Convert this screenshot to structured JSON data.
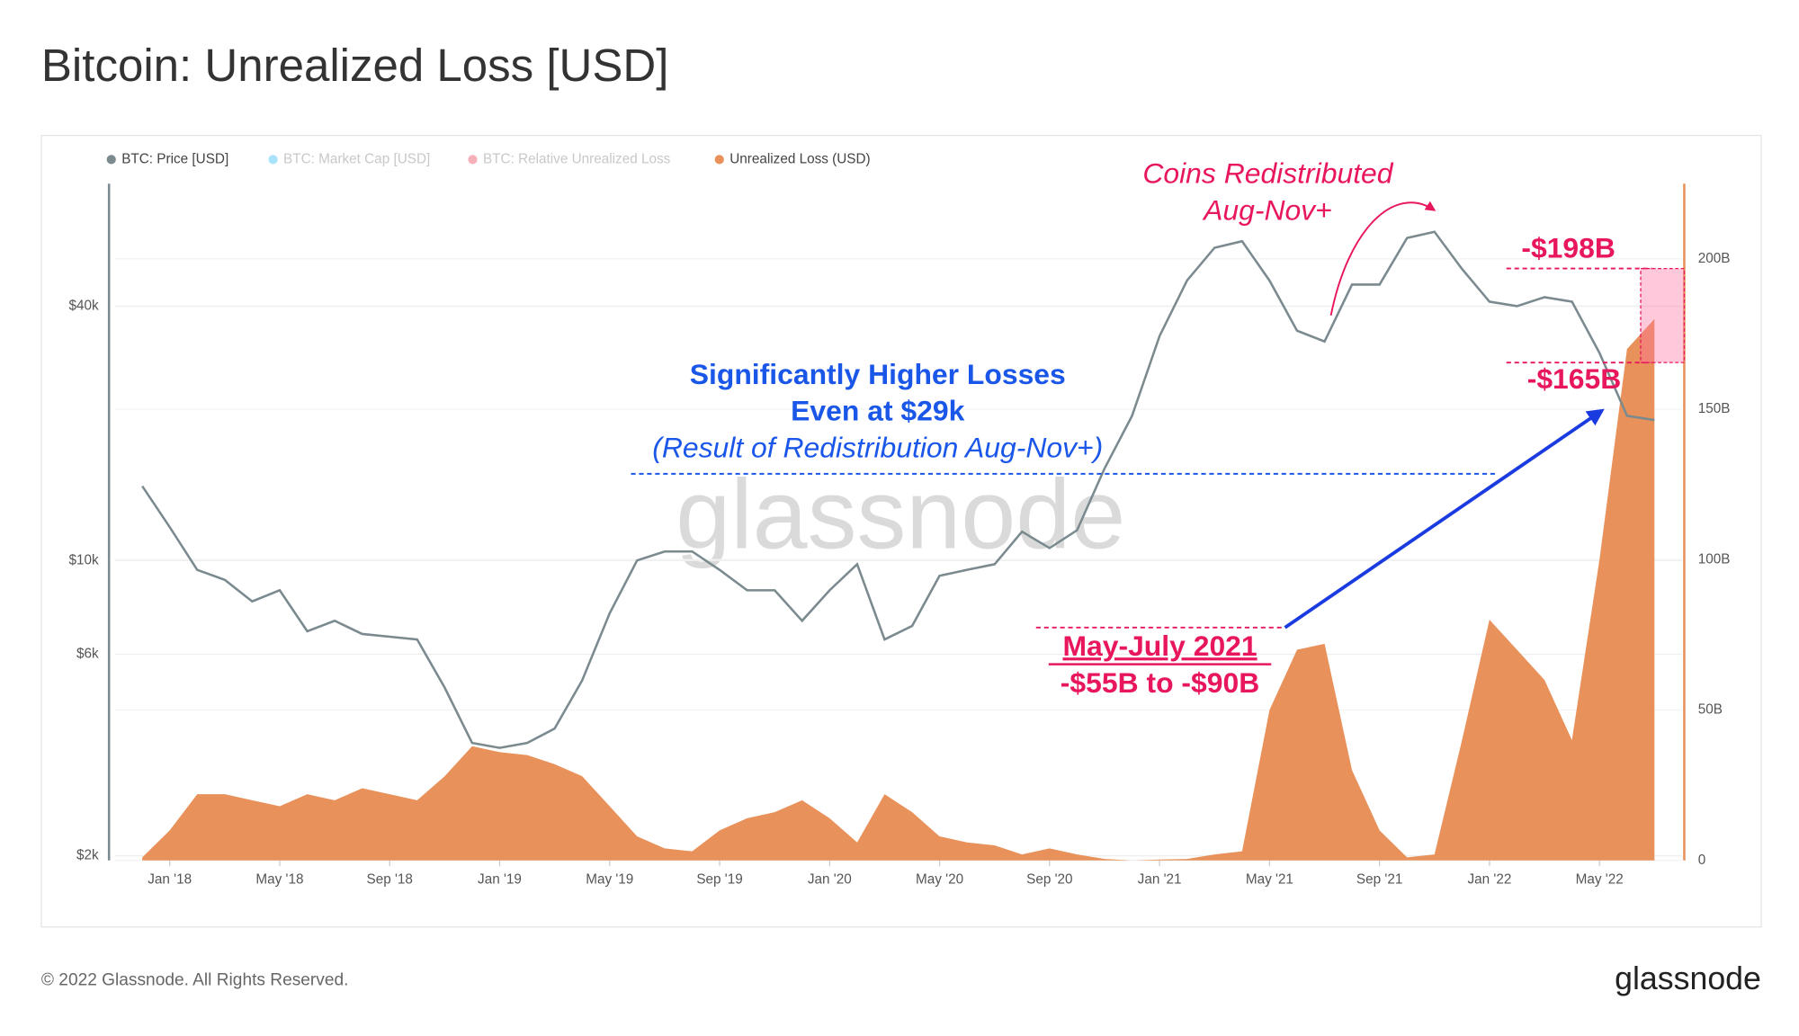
{
  "title": "Bitcoin: Unrealized Loss [USD]",
  "footer": "© 2022 Glassnode. All Rights Reserved.",
  "logo": "glassnode",
  "watermark": "glassnode",
  "chart_data": {
    "type": "line",
    "x": [
      "2017-12",
      "2018-01",
      "2018-02",
      "2018-03",
      "2018-04",
      "2018-05",
      "2018-06",
      "2018-07",
      "2018-08",
      "2018-09",
      "2018-10",
      "2018-11",
      "2018-12",
      "2019-01",
      "2019-02",
      "2019-03",
      "2019-04",
      "2019-05",
      "2019-06",
      "2019-07",
      "2019-08",
      "2019-09",
      "2019-10",
      "2019-11",
      "2019-12",
      "2020-01",
      "2020-02",
      "2020-03",
      "2020-04",
      "2020-05",
      "2020-06",
      "2020-07",
      "2020-08",
      "2020-09",
      "2020-10",
      "2020-11",
      "2020-12",
      "2021-01",
      "2021-02",
      "2021-03",
      "2021-04",
      "2021-05",
      "2021-06",
      "2021-07",
      "2021-08",
      "2021-09",
      "2021-10",
      "2021-11",
      "2021-12",
      "2022-01",
      "2022-02",
      "2022-03",
      "2022-04",
      "2022-05",
      "2022-06",
      "2022-07"
    ],
    "series": [
      {
        "name": "BTC: Price [USD]",
        "color": "#7a8a8f",
        "axis": "y",
        "values": [
          15000,
          12000,
          9500,
          9000,
          8000,
          8500,
          6800,
          7200,
          6700,
          6600,
          6500,
          5000,
          3700,
          3600,
          3700,
          4000,
          5200,
          7500,
          10000,
          10500,
          10500,
          9500,
          8500,
          8500,
          7200,
          8500,
          9800,
          6500,
          7000,
          9200,
          9500,
          9800,
          11700,
          10700,
          11800,
          16500,
          22000,
          34000,
          46000,
          55000,
          57000,
          46000,
          35000,
          33000,
          45000,
          45000,
          58000,
          60000,
          49000,
          41000,
          40000,
          42000,
          41000,
          31000,
          22000,
          21500
        ]
      },
      {
        "name": "Unrealized Loss (USD)",
        "color": "#e8915a",
        "axis": "y2",
        "style": "area",
        "values": [
          1000000000,
          10000000000,
          22000000000,
          22000000000,
          20000000000,
          18000000000,
          22000000000,
          20000000000,
          24000000000,
          22000000000,
          20000000000,
          28000000000,
          38000000000,
          36000000000,
          35000000000,
          32000000000,
          28000000000,
          18000000000,
          8000000000,
          4000000000,
          3000000000,
          10000000000,
          14000000000,
          16000000000,
          20000000000,
          14000000000,
          6000000000,
          22000000000,
          16000000000,
          8000000000,
          6000000000,
          5000000000,
          2000000000,
          4000000000,
          2000000000,
          500000000,
          0,
          300000000,
          500000000,
          2000000000,
          3000000000,
          50000000000,
          70000000000,
          72000000000,
          30000000000,
          10000000000,
          1000000000,
          2000000000,
          40000000000,
          80000000000,
          70000000000,
          60000000000,
          40000000000,
          100000000000,
          170000000000,
          180000000000
        ]
      }
    ],
    "inactive_legend": [
      {
        "name": "BTC: Market Cap [USD]",
        "color": "#29b6f6"
      },
      {
        "name": "BTC: Relative Unrealized Loss",
        "color": "#e53950"
      }
    ],
    "legend_order": [
      "BTC: Price [USD]",
      "BTC: Market Cap [USD]",
      "BTC: Relative Unrealized Loss",
      "Unrealized Loss (USD)"
    ],
    "xlim": [
      "2017-11",
      "2022-08"
    ],
    "xticks": [
      {
        "value": "2018-01",
        "label": "Jan '18"
      },
      {
        "value": "2018-05",
        "label": "May '18"
      },
      {
        "value": "2018-09",
        "label": "Sep '18"
      },
      {
        "value": "2019-01",
        "label": "Jan '19"
      },
      {
        "value": "2019-05",
        "label": "May '19"
      },
      {
        "value": "2019-09",
        "label": "Sep '19"
      },
      {
        "value": "2020-01",
        "label": "Jan '20"
      },
      {
        "value": "2020-05",
        "label": "May '20"
      },
      {
        "value": "2020-09",
        "label": "Sep '20"
      },
      {
        "value": "2021-01",
        "label": "Jan '21"
      },
      {
        "value": "2021-05",
        "label": "May '21"
      },
      {
        "value": "2021-09",
        "label": "Sep '21"
      },
      {
        "value": "2022-01",
        "label": "Jan '22"
      },
      {
        "value": "2022-05",
        "label": "May '22"
      }
    ],
    "ylim": [
      1950,
      78000
    ],
    "yscale": "log",
    "yticks": [
      {
        "value": 2000,
        "label": "$2k"
      },
      {
        "value": 6000,
        "label": "$6k"
      },
      {
        "value": 10000,
        "label": "$10k"
      },
      {
        "value": 40000,
        "label": "$40k"
      }
    ],
    "y2lim": [
      0,
      225000000000
    ],
    "y2ticks": [
      0,
      {
        "value": 50000000000,
        "label": "50B"
      },
      {
        "value": 100000000000,
        "label": "100B"
      },
      {
        "value": 150000000000,
        "label": "150B"
      },
      {
        "value": 200000000000,
        "label": "200B"
      }
    ],
    "grid": true,
    "legend": "top-left",
    "annotations": {
      "redistributed": [
        "Coins Redistributed",
        "Aug-Nov+"
      ],
      "high": "-$198B",
      "low": "-$165B",
      "losses": [
        "Significantly Higher Losses",
        "Even at $29k",
        "(Result of Redistribution Aug-Nov+)"
      ],
      "mayjuly": [
        "May-July 2021",
        "-$55B to -$90B"
      ]
    }
  }
}
